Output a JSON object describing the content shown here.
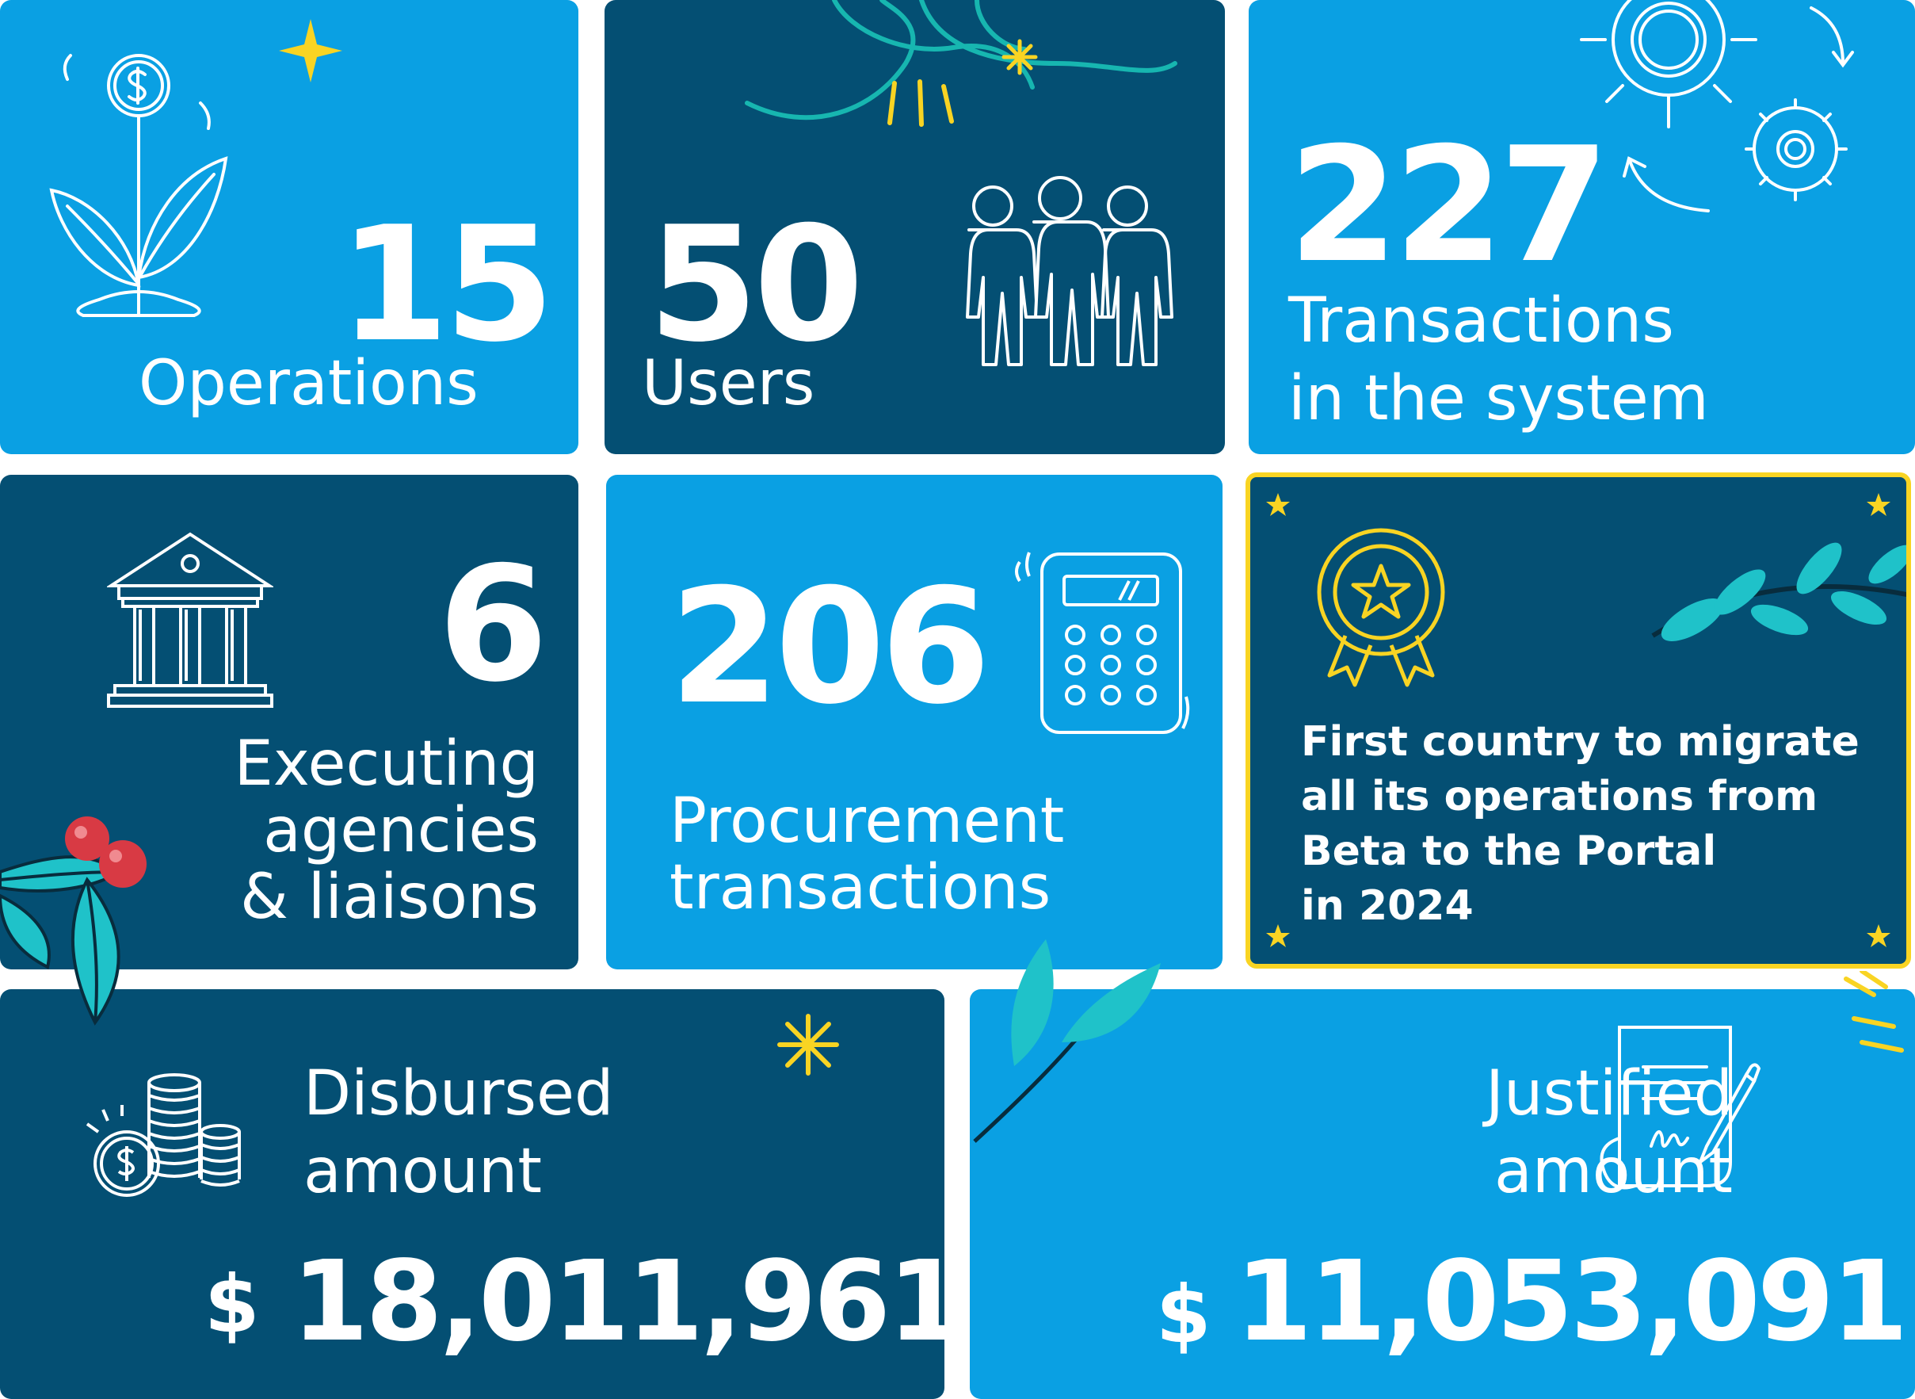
{
  "stats": {
    "operations": {
      "value": "15",
      "label": "Operations"
    },
    "users": {
      "value": "50",
      "label": "Users"
    },
    "transactions": {
      "value": "227",
      "label_line1": "Transactions",
      "label_line2": "in the system"
    },
    "agencies": {
      "value": "6",
      "label_line1": "Executing",
      "label_line2": "agencies",
      "label_line3": "& liaisons"
    },
    "procurement": {
      "value": "206",
      "label_line1": "Procurement",
      "label_line2": "transactions"
    },
    "award": {
      "line1": "First country to migrate",
      "line2": "all its operations from",
      "line3": "Beta to the Portal",
      "line4": "in 2024"
    },
    "disbursed": {
      "label_line1": "Disbursed",
      "label_line2": "amount",
      "currency": "$",
      "value": "18,011,961"
    },
    "justified": {
      "label_line1": "Justified",
      "label_line2": "amount",
      "currency": "$",
      "value": "11,053,091"
    }
  },
  "icons": [
    "money-plant-icon",
    "users-group-icon",
    "gears-icon",
    "bank-building-icon",
    "calculator-icon",
    "award-medal-icon",
    "coins-stack-icon",
    "signed-document-icon",
    "holly-berries-icon",
    "leaf-branch-icon",
    "sparkle-icon"
  ],
  "colors": {
    "light_tile": "#0aa0e3",
    "dark_tile": "#044f73",
    "accent_yellow": "#f9d423",
    "leaf_teal": "#1fc2c9",
    "berry_red": "#d83a44"
  }
}
